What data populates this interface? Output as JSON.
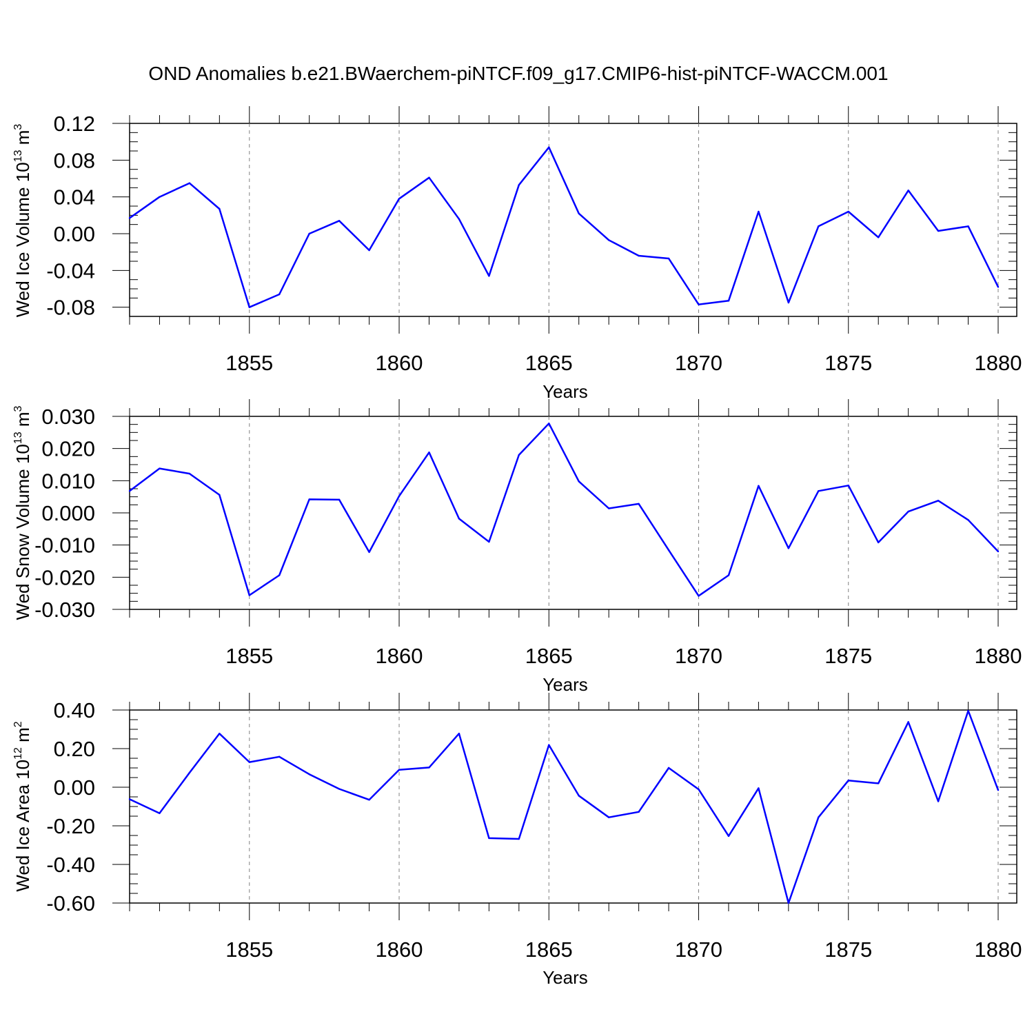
{
  "title": "OND Anomalies b.e21.BWaerchem-piNTCF.f09_g17.CMIP6-hist-piNTCF-WACCM.001",
  "colors": {
    "series": "#0000ff",
    "axis": "#000000",
    "grid": "#808080"
  },
  "chart_data": [
    {
      "type": "line",
      "ylabel": {
        "main": "Wed Ice Volume 10",
        "exp": "13",
        "unit": " m",
        "unit_exp": "3"
      },
      "xlabel": "Years",
      "xlim": [
        1851,
        1880
      ],
      "ylim": [
        -0.09,
        0.12
      ],
      "yticks": [
        0.12,
        0.08,
        0.04,
        0.0,
        -0.04,
        -0.08
      ],
      "ytick_labels": [
        "0.12",
        "0.08",
        "0.04",
        "0.00",
        "-0.04",
        "-0.08"
      ],
      "xticks": [
        1855,
        1860,
        1865,
        1870,
        1875,
        1880
      ],
      "xtick_labels": [
        "1855",
        "1860",
        "1865",
        "1870",
        "1875",
        "1880"
      ],
      "grid": "vertical dashed at major x ticks",
      "x": [
        1851,
        1852,
        1853,
        1854,
        1855,
        1856,
        1857,
        1858,
        1859,
        1860,
        1861,
        1862,
        1863,
        1864,
        1865,
        1866,
        1867,
        1868,
        1869,
        1870,
        1871,
        1872,
        1873,
        1874,
        1875,
        1876,
        1877,
        1878,
        1879,
        1880
      ],
      "y": [
        0.017,
        0.04,
        0.055,
        0.027,
        -0.08,
        -0.066,
        0.0,
        0.014,
        -0.018,
        0.038,
        0.061,
        0.016,
        -0.046,
        0.053,
        0.094,
        0.022,
        -0.007,
        -0.024,
        -0.027,
        -0.077,
        -0.073,
        0.024,
        -0.075,
        0.008,
        0.024,
        -0.004,
        0.047,
        0.003,
        0.008,
        -0.058
      ]
    },
    {
      "type": "line",
      "ylabel": {
        "main": "Wed Snow Volume 10",
        "exp": "13",
        "unit": " m",
        "unit_exp": "3"
      },
      "xlabel": "Years",
      "xlim": [
        1851,
        1880
      ],
      "ylim": [
        -0.03,
        0.03
      ],
      "yticks": [
        0.03,
        0.02,
        0.01,
        0.0,
        -0.01,
        -0.02,
        -0.03
      ],
      "ytick_labels": [
        "0.030",
        "0.020",
        "0.010",
        "0.000",
        "-0.010",
        "-0.020",
        "-0.030"
      ],
      "xticks": [
        1855,
        1860,
        1865,
        1870,
        1875,
        1880
      ],
      "xtick_labels": [
        "1855",
        "1860",
        "1865",
        "1870",
        "1875",
        "1880"
      ],
      "grid": "vertical dashed at major x ticks",
      "x": [
        1851,
        1852,
        1853,
        1854,
        1855,
        1856,
        1857,
        1858,
        1859,
        1860,
        1861,
        1862,
        1863,
        1864,
        1865,
        1866,
        1867,
        1868,
        1869,
        1870,
        1871,
        1872,
        1873,
        1874,
        1875,
        1876,
        1877,
        1878,
        1879,
        1880
      ],
      "y": [
        0.0068,
        0.0138,
        0.0122,
        0.0056,
        -0.0256,
        -0.0194,
        0.0042,
        0.0041,
        -0.0122,
        0.0052,
        0.0188,
        -0.0018,
        -0.009,
        0.018,
        0.0278,
        0.0098,
        0.0014,
        0.0028,
        -0.0116,
        -0.0258,
        -0.0194,
        0.0084,
        -0.011,
        0.0068,
        0.0085,
        -0.0092,
        0.0004,
        0.0038,
        -0.0022,
        -0.012
      ]
    },
    {
      "type": "line",
      "ylabel": {
        "main": "Wed Ice Area 10",
        "exp": "12",
        "unit": " m",
        "unit_exp": "2"
      },
      "xlabel": "Years",
      "xlim": [
        1851,
        1880
      ],
      "ylim": [
        -0.6,
        0.4
      ],
      "yticks": [
        0.4,
        0.2,
        0.0,
        -0.2,
        -0.4,
        -0.6
      ],
      "ytick_labels": [
        "0.40",
        "0.20",
        "0.00",
        "-0.20",
        "-0.40",
        "-0.60"
      ],
      "xticks": [
        1855,
        1860,
        1865,
        1870,
        1875,
        1880
      ],
      "xtick_labels": [
        "1855",
        "1860",
        "1865",
        "1870",
        "1875",
        "1880"
      ],
      "grid": "vertical dashed at major x ticks",
      "x": [
        1851,
        1852,
        1853,
        1854,
        1855,
        1856,
        1857,
        1858,
        1859,
        1860,
        1861,
        1862,
        1863,
        1864,
        1865,
        1866,
        1867,
        1868,
        1869,
        1870,
        1871,
        1872,
        1873,
        1874,
        1875,
        1876,
        1877,
        1878,
        1879,
        1880
      ],
      "y": [
        -0.062,
        -0.135,
        0.075,
        0.278,
        0.13,
        0.158,
        0.067,
        -0.009,
        -0.065,
        0.09,
        0.102,
        0.278,
        -0.264,
        -0.268,
        0.219,
        -0.044,
        -0.156,
        -0.128,
        0.1,
        -0.011,
        -0.253,
        -0.005,
        -0.6,
        -0.156,
        0.035,
        0.02,
        0.338,
        -0.073,
        0.396,
        -0.015
      ]
    }
  ]
}
